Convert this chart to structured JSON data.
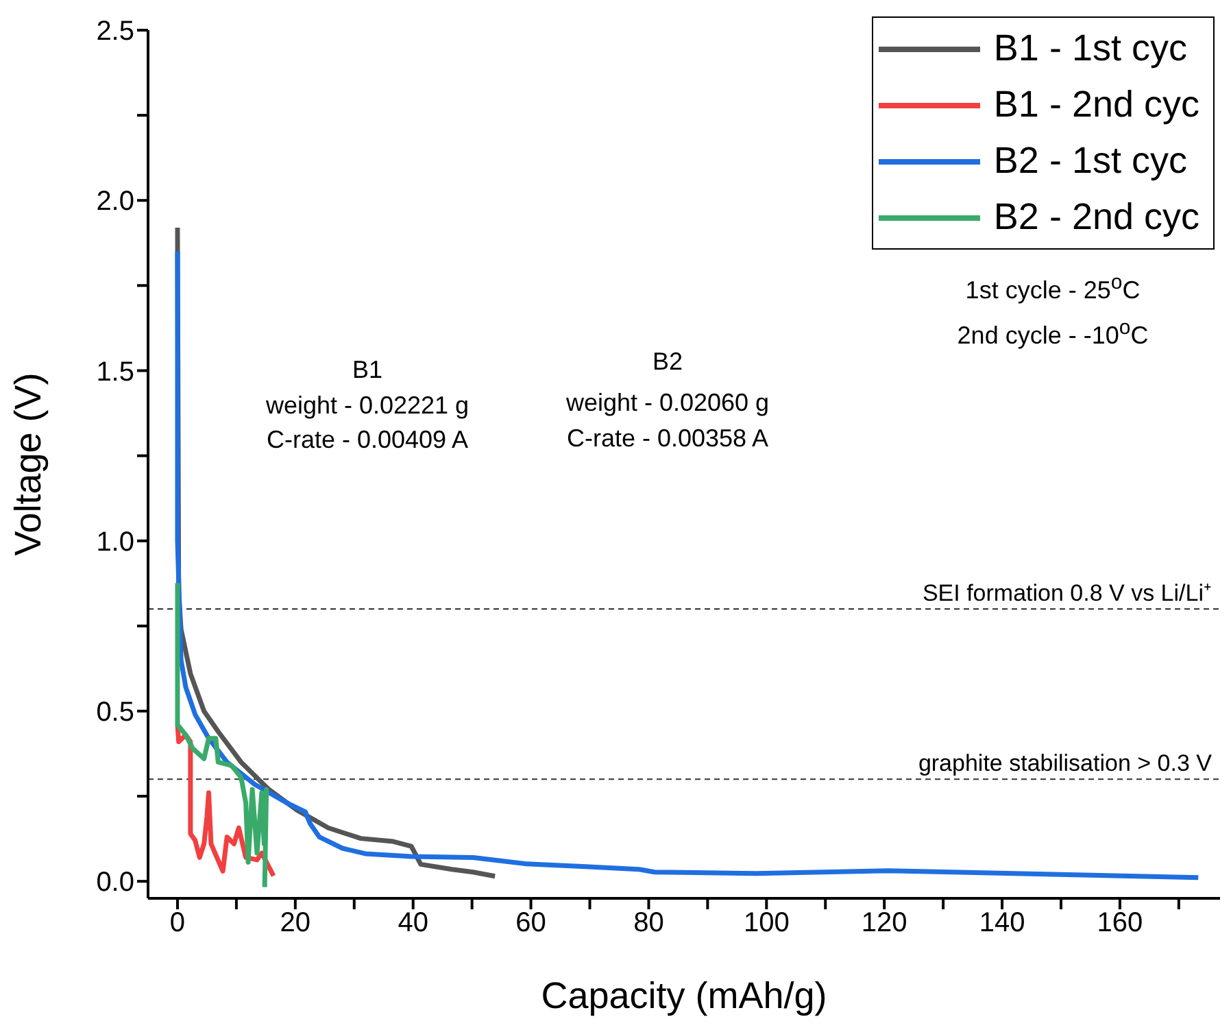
{
  "chart_data": {
    "type": "line",
    "xlabel": "Capacity (mAh/g)",
    "ylabel": "Voltage (V)",
    "xlim": [
      -5,
      177
    ],
    "ylim": [
      -0.05,
      2.5
    ],
    "xticks": [
      0,
      {
        "value": 10,
        "label": null
      },
      20,
      {
        "value": 30,
        "label": null
      },
      40,
      {
        "value": 50,
        "label": null
      },
      60,
      {
        "value": 70,
        "label": null
      },
      80,
      {
        "value": 90,
        "label": null
      },
      100,
      {
        "value": 110,
        "label": null
      },
      120,
      {
        "value": 130,
        "label": null
      },
      140,
      {
        "value": 150,
        "label": null
      },
      160,
      {
        "value": 170,
        "label": null
      }
    ],
    "yticks": [
      {
        "value": 0,
        "label": "0.0"
      },
      {
        "value": 0.25,
        "label": null
      },
      0.5,
      {
        "value": 0.75,
        "label": null
      },
      {
        "value": 1,
        "label": "1.0"
      },
      {
        "value": 1.25,
        "label": null
      },
      1.5,
      {
        "value": 1.75,
        "label": null
      },
      {
        "value": 2,
        "label": "2.0"
      },
      {
        "value": 2.25,
        "label": null
      },
      2.5
    ],
    "grid": false,
    "legend": "top right",
    "line_style": "solid",
    "marker": "none",
    "series": [
      {
        "name": "B1 - 1st cyc",
        "color": "#555555",
        "x": [
          0,
          0.2,
          0.6,
          2.2,
          4.5,
          6.9,
          10.8,
          15.5,
          20.2,
          25.6,
          31.1,
          36.6,
          39.7,
          41.3,
          46.6,
          50.2,
          53.9
        ],
        "values": [
          1.92,
          0.85,
          0.74,
          0.61,
          0.5,
          0.44,
          0.35,
          0.27,
          0.21,
          0.157,
          0.126,
          0.117,
          0.103,
          0.05,
          0.035,
          0.027,
          0.015
        ]
      },
      {
        "name": "B1 - 2nd cyc",
        "color": "#f04040",
        "x": [
          0,
          0.2,
          1.4,
          2.2,
          2.2,
          3,
          3.75,
          4.5,
          5,
          5.3,
          5.7,
          7.7,
          8.4,
          9.6,
          10.4,
          11.6,
          13.5,
          14.3,
          16.3
        ],
        "values": [
          0.46,
          0.41,
          0.43,
          0.41,
          0.14,
          0.12,
          0.07,
          0.11,
          0.19,
          0.26,
          0.11,
          0.03,
          0.13,
          0.11,
          0.157,
          0.07,
          0.063,
          0.083,
          0.016
        ]
      },
      {
        "name": "B2 - 1st cyc",
        "color": "#1f6fe0",
        "x": [
          0,
          0,
          0.6,
          1.4,
          3,
          5.3,
          8.4,
          13.1,
          18.6,
          21.7,
          22.5,
          24.1,
          28,
          31.9,
          39.7,
          50.2,
          59.3,
          69.3,
          78.4,
          81,
          98.2,
          120.8,
          131.6,
          152.6,
          173.3
        ],
        "values": [
          1.85,
          1.0,
          0.65,
          0.57,
          0.49,
          0.42,
          0.35,
          0.285,
          0.23,
          0.204,
          0.17,
          0.13,
          0.097,
          0.081,
          0.073,
          0.07,
          0.051,
          0.043,
          0.035,
          0.027,
          0.023,
          0.031,
          0.027,
          0.019,
          0.011
        ]
      },
      {
        "name": "B2 - 2nd cyc",
        "color": "#3aaa6a",
        "x": [
          0,
          0,
          1.4,
          2.6,
          4.5,
          5.3,
          6.5,
          6.9,
          9.2,
          10.8,
          11.6,
          12,
          12.7,
          13.5,
          14.3,
          14.7,
          15.1,
          14.8
        ],
        "values": [
          0.876,
          0.46,
          0.43,
          0.39,
          0.36,
          0.42,
          0.42,
          0.35,
          0.34,
          0.305,
          0.23,
          0.056,
          0.27,
          0.083,
          0.26,
          0.11,
          0.27,
          -0.017
        ]
      }
    ],
    "ref_lines": [
      {
        "axis": "y",
        "value": 0.8,
        "label": "SEI formation 0.8 V vs Li/Li⁺",
        "color": "#333333",
        "line_style": "dashed"
      },
      {
        "axis": "y",
        "value": 0.3,
        "label": "graphite stabilisation > 0.3 V",
        "color": "#333333",
        "line_style": "dashed"
      }
    ],
    "annotations": [
      "B1",
      "weight - 0.02221 g",
      "C-rate - 0.00409 A",
      "B2",
      "weight - 0.02060 g",
      "C-rate - 0.00358 A",
      "1st cycle - 25$^{o}$C",
      "2nd cycle - -10$^{o}$C"
    ]
  }
}
